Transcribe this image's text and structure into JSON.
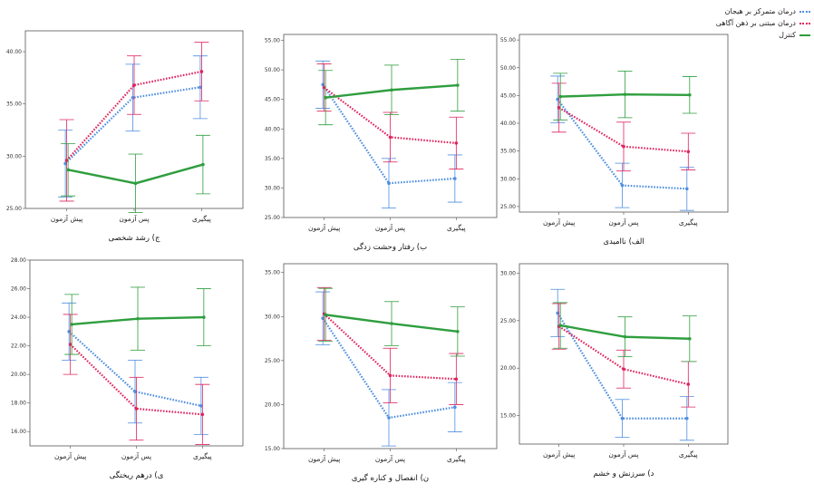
{
  "legend": {
    "items": [
      {
        "label": "درمان متمرکز بر هیجان",
        "color": "#4f8fe0",
        "style": "dotted"
      },
      {
        "label": "درمان مبتنی بر ذهن آگاهی",
        "color": "#e0245e",
        "style": "dotted"
      },
      {
        "label": "کنترل",
        "color": "#2e9e3e",
        "style": "solid"
      }
    ]
  },
  "chart_data": [
    {
      "type": "line",
      "title": "ج) رشد شخصی",
      "categories": [
        "پیش آزمون",
        "پس آزمون",
        "پیگیری"
      ],
      "ylim": [
        25,
        42
      ],
      "yticks": [
        "25.00",
        "30.00",
        "35.00",
        "40.00"
      ],
      "series": [
        {
          "name": "درمان متمرکز بر هیجان",
          "values": [
            29.3,
            35.6,
            36.6
          ],
          "err": [
            3.2,
            3.2,
            3.0
          ]
        },
        {
          "name": "درمان مبتنی بر ذهن آگاهی",
          "values": [
            29.6,
            36.8,
            38.1
          ],
          "err": [
            3.9,
            2.8,
            2.8
          ]
        },
        {
          "name": "کنترل",
          "values": [
            28.7,
            27.4,
            29.2
          ],
          "err": [
            2.5,
            2.8,
            2.8
          ]
        }
      ]
    },
    {
      "type": "line",
      "title": "ب) رفتار وحشت زدگی",
      "categories": [
        "پیش آزمون",
        "پس آزمون",
        "پیگیری"
      ],
      "ylim": [
        25,
        56
      ],
      "yticks": [
        "25.00",
        "30.00",
        "35.00",
        "40.00",
        "45.00",
        "50.00",
        "55.00"
      ],
      "series": [
        {
          "name": "درمان متمرکز بر هیجان",
          "values": [
            47.5,
            30.8,
            31.6
          ],
          "err": [
            4.0,
            4.2,
            4.0
          ]
        },
        {
          "name": "درمان مبتنی بر ذهن آگاهی",
          "values": [
            47.0,
            38.6,
            37.6
          ],
          "err": [
            4.0,
            4.2,
            4.4
          ]
        },
        {
          "name": "کنترل",
          "values": [
            45.3,
            46.6,
            47.4
          ],
          "err": [
            4.6,
            4.2,
            4.4
          ]
        }
      ]
    },
    {
      "type": "line",
      "title": "الف) ناامیدی",
      "categories": [
        "پیش آزمون",
        "پس آزمون",
        "پیگیری"
      ],
      "ylim": [
        24,
        56
      ],
      "yticks": [
        "25.00",
        "30.00",
        "35.00",
        "40.00",
        "45.00",
        "50.00",
        "55.00"
      ],
      "series": [
        {
          "name": "درمان متمرکز بر هیجان",
          "values": [
            44.3,
            28.8,
            28.2
          ],
          "err": [
            4.2,
            4.0,
            3.9
          ]
        },
        {
          "name": "درمان مبتنی بر ذهن آگاهی",
          "values": [
            42.8,
            35.8,
            34.9
          ],
          "err": [
            4.4,
            4.4,
            3.3
          ]
        },
        {
          "name": "کنترل",
          "values": [
            44.8,
            45.2,
            45.1
          ],
          "err": [
            4.2,
            4.2,
            3.3
          ]
        }
      ]
    },
    {
      "type": "line",
      "title": "ی) درهم ریختگی",
      "categories": [
        "پیش آزمون",
        "پس آزمون",
        "پیگیری"
      ],
      "ylim": [
        15,
        28
      ],
      "yticks": [
        "16.00",
        "18.00",
        "20.00",
        "22.00",
        "24.00",
        "26.00",
        "28.00"
      ],
      "series": [
        {
          "name": "درمان متمرکز بر هیجان",
          "values": [
            23.0,
            18.8,
            17.8
          ],
          "err": [
            2.0,
            2.2,
            2.0
          ]
        },
        {
          "name": "درمان مبتنی بر ذهن آگاهی",
          "values": [
            22.1,
            17.6,
            17.2
          ],
          "err": [
            2.1,
            2.2,
            2.1
          ]
        },
        {
          "name": "کنترل",
          "values": [
            23.5,
            23.9,
            24.0
          ],
          "err": [
            2.1,
            2.2,
            2.0
          ]
        }
      ]
    },
    {
      "type": "line",
      "title": "ن) انفصال و کناره گیری",
      "categories": [
        "پیش آزمون",
        "پس آزمون",
        "پیگیری"
      ],
      "ylim": [
        15,
        36
      ],
      "yticks": [
        "15.00",
        "20.00",
        "25.00",
        "30.00",
        "35.00"
      ],
      "series": [
        {
          "name": "درمان متمرکز بر هیجان",
          "values": [
            29.8,
            18.5,
            19.7
          ],
          "err": [
            3.0,
            3.2,
            2.8
          ]
        },
        {
          "name": "درمان مبتنی بر ذهن آگاهی",
          "values": [
            30.3,
            23.3,
            22.9
          ],
          "err": [
            3.0,
            3.1,
            2.9
          ]
        },
        {
          "name": "کنترل",
          "values": [
            30.2,
            29.2,
            28.3
          ],
          "err": [
            3.0,
            2.5,
            2.8
          ]
        }
      ]
    },
    {
      "type": "line",
      "title": "د) سرزنش و خشم",
      "categories": [
        "پیش آزمون",
        "پس آزمون",
        "پیگیری"
      ],
      "ylim": [
        12,
        31
      ],
      "yticks": [
        "15.00",
        "20.00",
        "25.00",
        "30.00"
      ],
      "series": [
        {
          "name": "درمان متمرکز بر هیجان",
          "values": [
            25.8,
            14.7,
            14.7
          ],
          "err": [
            2.5,
            2.0,
            2.3
          ]
        },
        {
          "name": "درمان مبتنی بر ذهن آگاهی",
          "values": [
            24.4,
            19.9,
            18.3
          ],
          "err": [
            2.4,
            2.0,
            2.4
          ]
        },
        {
          "name": "کنترل",
          "values": [
            24.5,
            23.3,
            23.1
          ],
          "err": [
            2.4,
            2.1,
            2.4
          ]
        }
      ]
    }
  ]
}
